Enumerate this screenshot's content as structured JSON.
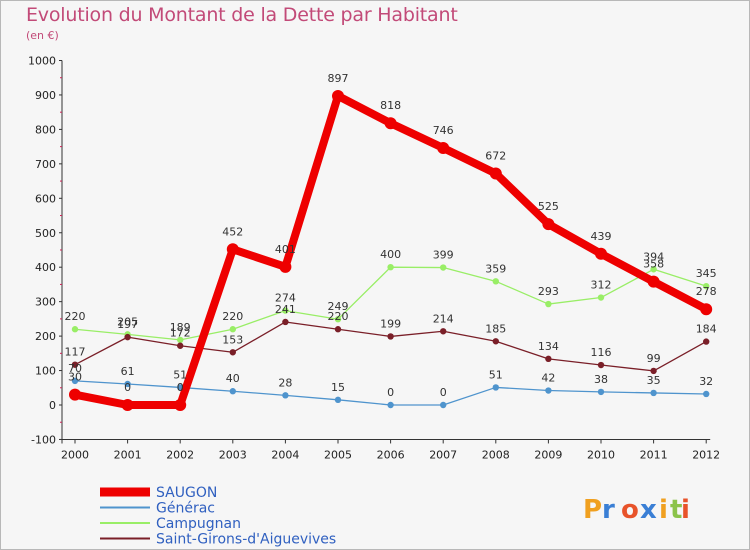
{
  "title": "Evolution du Montant de la Dette par Habitant",
  "subtitle": "(en €)",
  "chart_data": {
    "type": "line",
    "x": [
      "2000",
      "2001",
      "2002",
      "2003",
      "2004",
      "2005",
      "2006",
      "2007",
      "2008",
      "2009",
      "2010",
      "2011",
      "2012"
    ],
    "ylim": [
      -100,
      1000
    ],
    "yticks": [
      -100,
      0,
      100,
      200,
      300,
      400,
      500,
      600,
      700,
      800,
      900,
      1000
    ],
    "grid": false,
    "legend_position": "bottom-left",
    "series": [
      {
        "name": "SAUGON",
        "color": "#ee0000",
        "values": [
          30,
          0,
          0,
          452,
          401,
          897,
          818,
          746,
          672,
          525,
          439,
          358,
          278
        ]
      },
      {
        "name": "Générac",
        "color": "#4f94cd",
        "values": [
          70,
          61,
          51,
          40,
          28,
          15,
          0,
          0,
          51,
          42,
          38,
          35,
          32
        ]
      },
      {
        "name": "Campugnan",
        "color": "#99ee66",
        "values": [
          220,
          205,
          189,
          220,
          274,
          249,
          400,
          399,
          359,
          293,
          312,
          394,
          345
        ]
      },
      {
        "name": "Saint-Girons-d'Aiguevives",
        "color": "#7a1f28",
        "values": [
          117,
          197,
          172,
          153,
          241,
          220,
          199,
          214,
          185,
          134,
          116,
          99,
          184
        ]
      }
    ]
  },
  "legend": [
    {
      "label": "SAUGON",
      "color": "#ee0000"
    },
    {
      "label": "Générac",
      "color": "#4f94cd"
    },
    {
      "label": "Campugnan",
      "color": "#99ee66"
    },
    {
      "label": "Saint-Girons-d'Aiguevives",
      "color": "#7a1f28"
    }
  ],
  "brand": {
    "text": "Proxiti"
  }
}
